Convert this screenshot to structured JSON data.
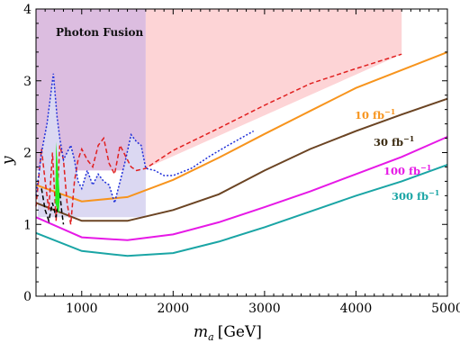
{
  "chart_data": {
    "type": "line",
    "xlabel_main": "m",
    "xlabel_sub": "a",
    "xlabel_unit": "[GeV]",
    "ylabel": "y",
    "xlim": [
      500,
      5000
    ],
    "ylim": [
      0,
      4
    ],
    "x_ticks": [
      "1000",
      "2000",
      "3000",
      "4000",
      "5000"
    ],
    "y_ticks": [
      "0",
      "1",
      "2",
      "3",
      "4"
    ],
    "regions": [
      {
        "name": "Photon Fusion",
        "color": "#dcbde0",
        "points": [
          [
            500,
            4
          ],
          [
            1700,
            4
          ],
          [
            1700,
            1.75
          ],
          [
            500,
            1.75
          ]
        ]
      },
      {
        "name": "pink-excluded",
        "color": "#fdd4d6",
        "points": [
          [
            1700,
            4
          ],
          [
            4500,
            4
          ],
          [
            4500,
            3.37
          ],
          [
            1700,
            1.78
          ]
        ]
      },
      {
        "name": "blue-excluded",
        "color": "#dbd8f2",
        "points": [
          [
            520,
            1.4
          ],
          [
            560,
            2.0
          ],
          [
            620,
            2.4
          ],
          [
            690,
            3.1
          ],
          [
            730,
            2.5
          ],
          [
            760,
            2.2
          ],
          [
            800,
            1.9
          ],
          [
            840,
            2.0
          ],
          [
            880,
            2.1
          ],
          [
            920,
            1.9
          ],
          [
            960,
            1.6
          ],
          [
            1000,
            1.5
          ],
          [
            1060,
            1.75
          ],
          [
            1120,
            1.55
          ],
          [
            1180,
            1.7
          ],
          [
            1240,
            1.6
          ],
          [
            1300,
            1.55
          ],
          [
            1360,
            1.3
          ],
          [
            1420,
            1.6
          ],
          [
            1480,
            1.9
          ],
          [
            1540,
            2.25
          ],
          [
            1600,
            2.15
          ],
          [
            1650,
            2.1
          ],
          [
            1700,
            1.78
          ],
          [
            1700,
            1.1
          ],
          [
            520,
            1.1
          ]
        ]
      }
    ],
    "series": [
      {
        "name": "10 fb⁻¹",
        "color": "#f7941d",
        "style": "solid",
        "x": [
          500,
          1000,
          1500,
          2000,
          2500,
          3000,
          3500,
          4000,
          4500,
          5000
        ],
        "y": [
          1.55,
          1.32,
          1.38,
          1.62,
          1.93,
          2.26,
          2.58,
          2.9,
          3.15,
          3.4
        ]
      },
      {
        "name": "30 fb⁻¹",
        "color": "#6b4423",
        "style": "solid",
        "x": [
          500,
          1000,
          1500,
          2000,
          2500,
          3000,
          3500,
          4000,
          4500,
          5000
        ],
        "y": [
          1.3,
          1.05,
          1.05,
          1.2,
          1.42,
          1.75,
          2.05,
          2.3,
          2.53,
          2.75
        ]
      },
      {
        "name": "100 fb⁻¹",
        "color": "#e619e6",
        "style": "solid",
        "x": [
          500,
          1000,
          1500,
          2000,
          2500,
          3000,
          3500,
          4000,
          4500,
          5000
        ],
        "y": [
          1.1,
          0.82,
          0.78,
          0.86,
          1.03,
          1.24,
          1.46,
          1.7,
          1.94,
          2.22
        ]
      },
      {
        "name": "300 fb⁻¹",
        "color": "#1aa5a5",
        "style": "solid",
        "x": [
          500,
          1000,
          1500,
          2000,
          2500,
          3000,
          3500,
          4000,
          4500,
          5000
        ],
        "y": [
          0.88,
          0.63,
          0.56,
          0.6,
          0.76,
          0.96,
          1.18,
          1.4,
          1.6,
          1.83
        ]
      },
      {
        "name": "red-dashed-bound",
        "color": "#e02020",
        "style": "dashed",
        "x": [
          500,
          560,
          600,
          640,
          680,
          720,
          760,
          800,
          840,
          880,
          920,
          960,
          1000,
          1060,
          1120,
          1180,
          1240,
          1300,
          1360,
          1420,
          1480,
          1540,
          1600,
          1700,
          2000,
          2500,
          3000,
          3500,
          4000,
          4500
        ],
        "y": [
          1.25,
          2.05,
          1.6,
          1.2,
          2.0,
          1.05,
          2.1,
          1.9,
          1.3,
          1.0,
          1.6,
          1.9,
          2.05,
          1.9,
          1.8,
          2.1,
          2.2,
          1.85,
          1.7,
          2.1,
          1.95,
          1.8,
          1.75,
          1.78,
          2.03,
          2.34,
          2.66,
          2.96,
          3.17,
          3.37
        ]
      },
      {
        "name": "blue-dotted-bound",
        "color": "#1f2fd9",
        "style": "dotted",
        "x": [
          500,
          560,
          620,
          690,
          730,
          760,
          800,
          840,
          880,
          920,
          960,
          1000,
          1060,
          1120,
          1180,
          1240,
          1300,
          1360,
          1420,
          1480,
          1540,
          1600,
          1650,
          1700,
          1800,
          1900,
          2000,
          2200,
          2400,
          2600,
          2880
        ],
        "y": [
          1.4,
          2.0,
          2.4,
          3.1,
          2.5,
          2.2,
          1.9,
          2.0,
          2.1,
          1.9,
          1.6,
          1.5,
          1.75,
          1.55,
          1.7,
          1.6,
          1.55,
          1.3,
          1.6,
          1.9,
          2.25,
          2.15,
          2.1,
          1.78,
          1.75,
          1.68,
          1.68,
          1.78,
          1.95,
          2.1,
          2.3
        ]
      },
      {
        "name": "black-dashed-bound",
        "color": "#000000",
        "style": "dashed",
        "x": [
          560,
          600,
          640,
          680,
          720,
          760,
          780,
          800
        ],
        "y": [
          1.5,
          1.2,
          1.05,
          1.3,
          1.1,
          1.45,
          1.2,
          1.0
        ]
      }
    ],
    "green_band": {
      "color": "#22ee22",
      "points": [
        [
          720,
          2.15
        ],
        [
          760,
          1.4
        ],
        [
          750,
          1.15
        ],
        [
          710,
          1.3
        ]
      ]
    },
    "labels": [
      {
        "text_key": "photon_fusion",
        "text": "Photon Fusion"
      },
      {
        "text_key": "lum10",
        "base": "10 fb",
        "sup": "−1",
        "color": "#f7941d"
      },
      {
        "text_key": "lum30",
        "base": "30 fb",
        "sup": "−1",
        "color": "#3a2a10"
      },
      {
        "text_key": "lum100",
        "base": "100 fb",
        "sup": "−1",
        "color": "#e619e6"
      },
      {
        "text_key": "lum300",
        "base": "300 fb",
        "sup": "−1",
        "color": "#1aa5a5"
      }
    ]
  }
}
